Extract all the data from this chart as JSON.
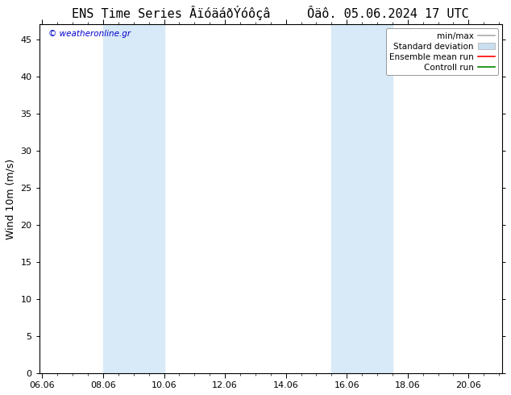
{
  "title": "ENS Time Series ÂïóäáðÝóôçâ     Ôäô. 05.06.2024 17 UTC",
  "ylabel": "Wind 10m (m/s)",
  "watermark": "© weatheronline.gr",
  "xticklabels": [
    "06.06",
    "08.06",
    "10.06",
    "12.06",
    "14.06",
    "16.06",
    "18.06",
    "20.06"
  ],
  "xtick_positions": [
    0,
    2,
    4,
    6,
    8,
    10,
    12,
    14
  ],
  "ylim": [
    0,
    47
  ],
  "yticks": [
    0,
    5,
    10,
    15,
    20,
    25,
    30,
    35,
    40,
    45
  ],
  "xlim": [
    -0.1,
    15.1
  ],
  "background_color": "#ffffff",
  "plot_bg_color": "#ffffff",
  "shaded_regions": [
    {
      "x_start": 2,
      "x_end": 4,
      "color": "#d8eaf8"
    },
    {
      "x_start": 9.5,
      "x_end": 10.5,
      "color": "#d8eaf8"
    },
    {
      "x_start": 10.5,
      "x_end": 11.5,
      "color": "#d8eaf8"
    }
  ],
  "legend_items": [
    {
      "label": "min/max",
      "color": "#aaaaaa",
      "lw": 1.2,
      "ls": "-",
      "type": "line"
    },
    {
      "label": "Standard deviation",
      "color": "#c8dff0",
      "lw": 5,
      "ls": "-",
      "type": "patch"
    },
    {
      "label": "Ensemble mean run",
      "color": "#ff0000",
      "lw": 1.2,
      "ls": "-",
      "type": "line"
    },
    {
      "label": "Controll run",
      "color": "#008800",
      "lw": 1.2,
      "ls": "-",
      "type": "line"
    }
  ],
  "watermark_color": "#0000cc",
  "title_fontsize": 11,
  "axis_fontsize": 9,
  "tick_fontsize": 8,
  "legend_fontsize": 7.5
}
